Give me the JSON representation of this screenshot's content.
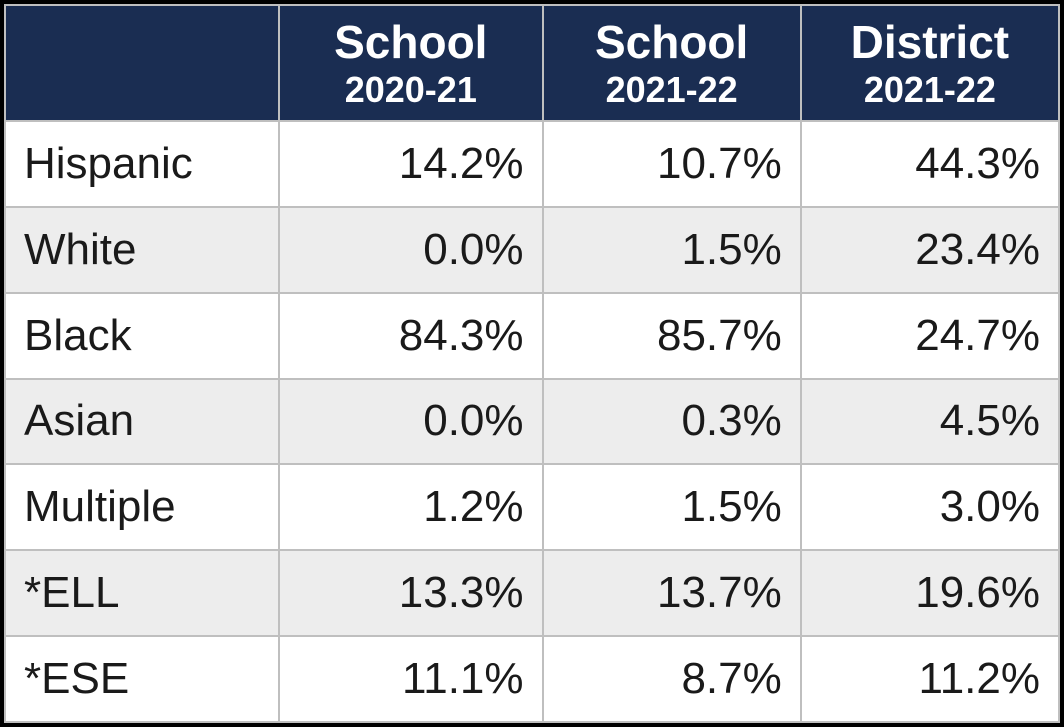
{
  "table": {
    "type": "table",
    "header_bg": "#1a2d52",
    "header_fg": "#ffffff",
    "row_bg_odd": "#ffffff",
    "row_bg_even": "#ededed",
    "border_color": "#bfbfbf",
    "text_color": "#1a1a1a",
    "header_title_fontsize": 46,
    "header_sub_fontsize": 36,
    "cell_fontsize": 44,
    "column_widths_pct": [
      26,
      25,
      24.5,
      24.5
    ],
    "columns": [
      {
        "title": "",
        "sub": ""
      },
      {
        "title": "School",
        "sub": "2020-21"
      },
      {
        "title": "School",
        "sub": "2021-22"
      },
      {
        "title": "District",
        "sub": "2021-22"
      }
    ],
    "rows": [
      {
        "label": "Hispanic",
        "values": [
          "14.2%",
          "10.7%",
          "44.3%"
        ]
      },
      {
        "label": "White",
        "values": [
          "0.0%",
          "1.5%",
          "23.4%"
        ]
      },
      {
        "label": "Black",
        "values": [
          "84.3%",
          "85.7%",
          "24.7%"
        ]
      },
      {
        "label": "Asian",
        "values": [
          "0.0%",
          "0.3%",
          "4.5%"
        ]
      },
      {
        "label": "Multiple",
        "values": [
          "1.2%",
          "1.5%",
          "3.0%"
        ]
      },
      {
        "label": "*ELL",
        "values": [
          "13.3%",
          "13.7%",
          "19.6%"
        ]
      },
      {
        "label": "*ESE",
        "values": [
          "11.1%",
          "8.7%",
          "11.2%"
        ]
      }
    ]
  }
}
